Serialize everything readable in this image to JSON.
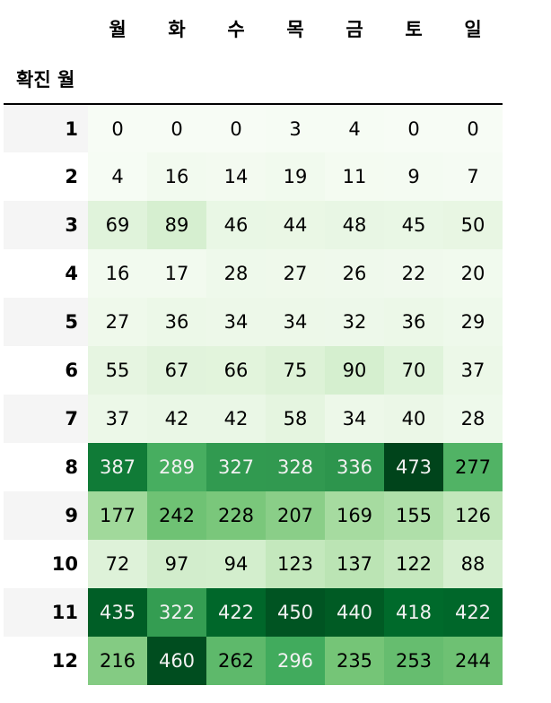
{
  "table": {
    "index_name": "확진 월",
    "columns": [
      "월",
      "화",
      "수",
      "목",
      "금",
      "토",
      "일"
    ],
    "rows": [
      {
        "label": "1",
        "values": [
          0,
          0,
          0,
          3,
          4,
          0,
          0
        ]
      },
      {
        "label": "2",
        "values": [
          4,
          16,
          14,
          19,
          11,
          9,
          7
        ]
      },
      {
        "label": "3",
        "values": [
          69,
          89,
          46,
          44,
          48,
          45,
          50
        ]
      },
      {
        "label": "4",
        "values": [
          16,
          17,
          28,
          27,
          26,
          22,
          20
        ]
      },
      {
        "label": "5",
        "values": [
          27,
          36,
          34,
          34,
          32,
          36,
          29
        ]
      },
      {
        "label": "6",
        "values": [
          55,
          67,
          66,
          75,
          90,
          70,
          37
        ]
      },
      {
        "label": "7",
        "values": [
          37,
          42,
          42,
          58,
          34,
          40,
          28
        ]
      },
      {
        "label": "8",
        "values": [
          387,
          289,
          327,
          328,
          336,
          473,
          277
        ]
      },
      {
        "label": "9",
        "values": [
          177,
          242,
          228,
          207,
          169,
          155,
          126
        ]
      },
      {
        "label": "10",
        "values": [
          72,
          97,
          94,
          123,
          137,
          122,
          88
        ]
      },
      {
        "label": "11",
        "values": [
          435,
          322,
          422,
          450,
          440,
          418,
          422
        ]
      },
      {
        "label": "12",
        "values": [
          216,
          460,
          262,
          296,
          235,
          253,
          244
        ]
      }
    ]
  },
  "colormap": {
    "name": "Greens",
    "low_color": "#f7fcf5",
    "high_color": "#00441b"
  }
}
